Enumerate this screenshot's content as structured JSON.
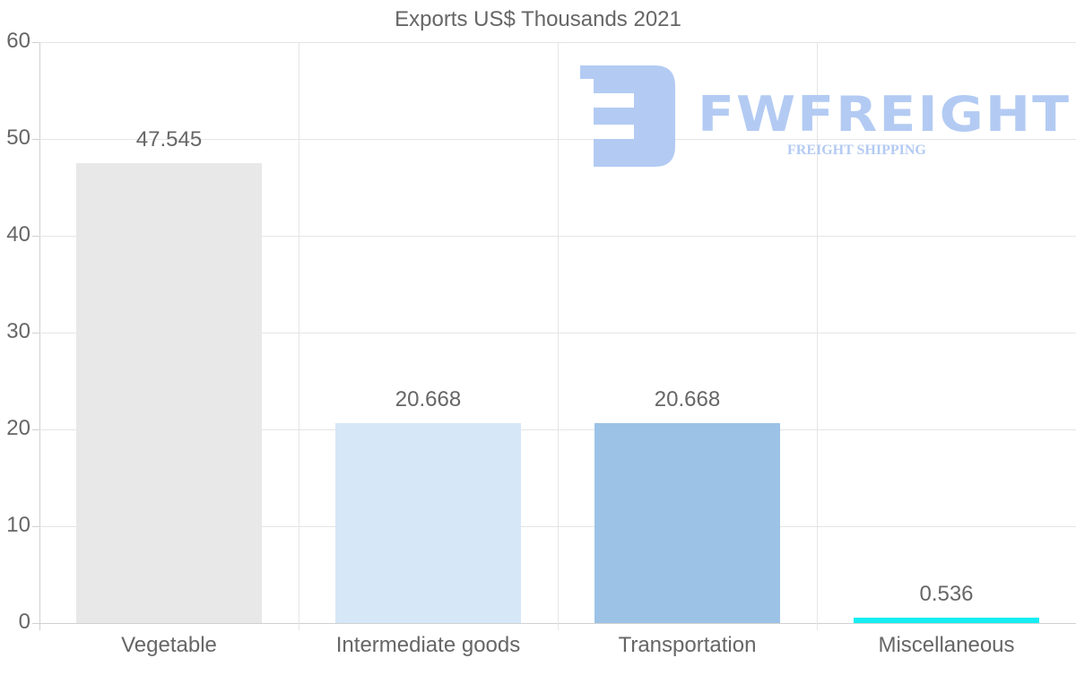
{
  "chart_data": {
    "type": "bar",
    "title": "Exports US$ Thousands 2021",
    "xlabel": "",
    "ylabel": "",
    "categories": [
      "Vegetable",
      "Intermediate goods",
      "Transportation",
      "Miscellaneous"
    ],
    "values": [
      47.545,
      20.668,
      20.668,
      0.536
    ],
    "value_labels": [
      "47.545",
      "20.668",
      "20.668",
      "0.536"
    ],
    "colors": [
      "#e8e8e8",
      "#d6e7f8",
      "#9cc3e6",
      "#14eef2"
    ],
    "ylim": [
      0,
      60
    ],
    "yticks": [
      "0",
      "10",
      "20",
      "30",
      "40",
      "50",
      "60"
    ],
    "grid": true,
    "legend": null
  },
  "watermark": {
    "brand": "FWFREIGHT",
    "tagline": "FREIGHT SHIPPING",
    "color": "#b3cbf3"
  }
}
